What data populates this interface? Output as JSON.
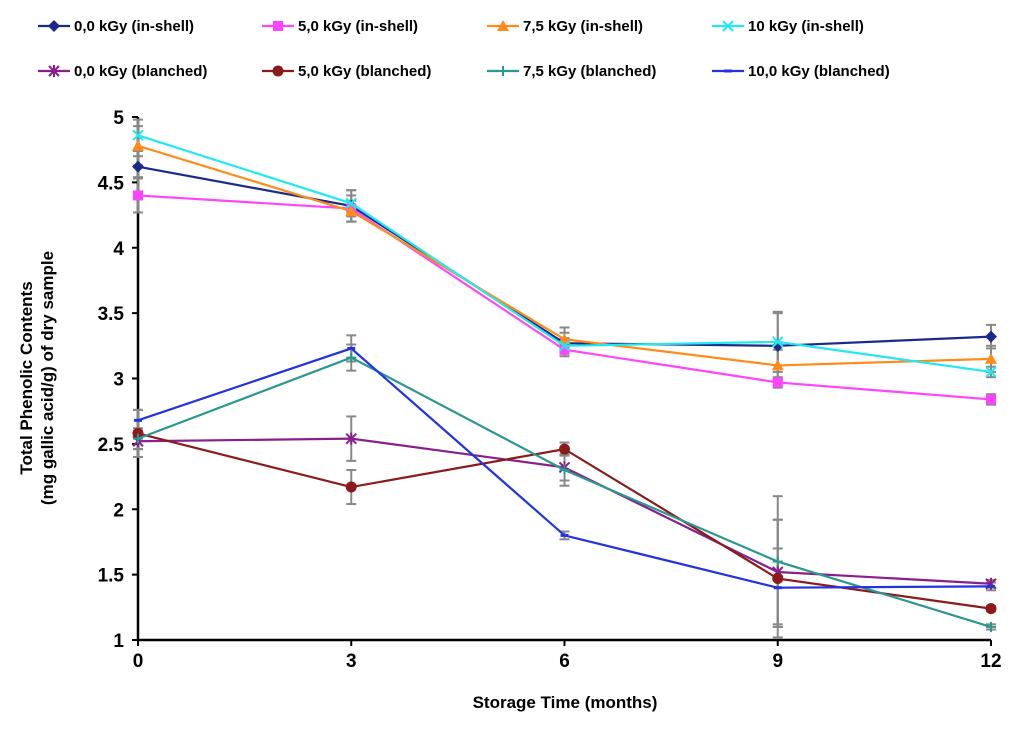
{
  "chart_data": {
    "type": "line",
    "title": "",
    "xlabel": "Storage Time (months)",
    "ylabel_lines": [
      "Total Phenolic Contents",
      "(mg gallic acid/g) of dry sample"
    ],
    "x": [
      0,
      3,
      6,
      9,
      12
    ],
    "x_tick_labels": [
      "0",
      "3",
      "6",
      "9",
      "12"
    ],
    "xlim": [
      0,
      12
    ],
    "ylim": [
      1,
      5
    ],
    "y_ticks": [
      1,
      1.5,
      2,
      2.5,
      3,
      3.5,
      4,
      4.5,
      5
    ],
    "y_tick_labels": [
      "1",
      "1.5",
      "2",
      "2.5",
      "3",
      "3.5",
      "4",
      "4.5",
      "5"
    ],
    "grid": false,
    "legend_position": "top",
    "series": [
      {
        "name": "0,0 kGy (in-shell)",
        "color": "#1a2a8c",
        "marker": "diamond",
        "values": [
          4.62,
          4.32,
          3.27,
          3.25,
          3.32
        ],
        "errors": [
          0.08,
          0.12,
          0.08,
          0.25,
          0.09
        ]
      },
      {
        "name": "5,0 kGy (in-shell)",
        "color": "#ff44ff",
        "marker": "square",
        "values": [
          4.4,
          4.3,
          3.22,
          2.97,
          2.84
        ],
        "errors": [
          0.13,
          0.1,
          0.05,
          0.04,
          0.04
        ]
      },
      {
        "name": "7,5 kGy (in-shell)",
        "color": "#ff8c1a",
        "marker": "triangle",
        "values": [
          4.78,
          4.28,
          3.3,
          3.1,
          3.15
        ],
        "errors": [
          0.15,
          0.08,
          0.09,
          0.12,
          0.1
        ]
      },
      {
        "name": "10 kGy (in-shell)",
        "color": "#22e8f0",
        "marker": "x",
        "values": [
          4.86,
          4.34,
          3.25,
          3.28,
          3.05
        ],
        "errors": [
          0.12,
          0.1,
          0.06,
          0.23,
          0.04
        ]
      },
      {
        "name": "0,0 kGy (blanched)",
        "color": "#8a1e8c",
        "marker": "star",
        "values": [
          2.52,
          2.54,
          2.32,
          1.52,
          1.43
        ],
        "errors": [
          0.06,
          0.17,
          0.1,
          0.4,
          0.03
        ]
      },
      {
        "name": "5,0 kGy (blanched)",
        "color": "#8b1a1a",
        "marker": "circle",
        "values": [
          2.58,
          2.17,
          2.46,
          1.47,
          1.24
        ],
        "errors": [
          0.18,
          0.13,
          0.05,
          0.45,
          0.02
        ]
      },
      {
        "name": "7,5 kGy (blanched)",
        "color": "#2a9890",
        "marker": "plus",
        "values": [
          2.54,
          3.16,
          2.3,
          1.6,
          1.1
        ],
        "errors": [
          0.08,
          0.1,
          0.12,
          0.5,
          0.02
        ]
      },
      {
        "name": "10,0 kGy (blanched)",
        "color": "#2233e0",
        "marker": "dash",
        "values": [
          2.68,
          3.23,
          1.8,
          1.4,
          1.41
        ],
        "errors": [
          0.08,
          0.1,
          0.03,
          0.3,
          0.03
        ]
      }
    ]
  }
}
